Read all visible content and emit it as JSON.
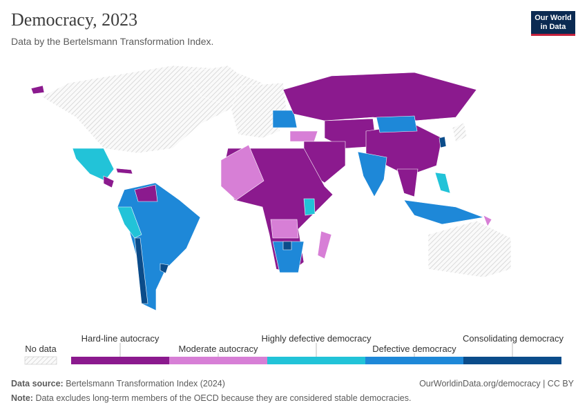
{
  "header": {
    "title": "Democracy, 2023",
    "subtitle": "Data by the Bertelsmann Transformation Index.",
    "logo": [
      "Our World",
      "in Data"
    ]
  },
  "legend": {
    "no_data": "No data",
    "items": [
      {
        "label": "Hard-line autocracy",
        "color": "#8b1a8e"
      },
      {
        "label": "Moderate autocracy",
        "color": "#d77fd6"
      },
      {
        "label": "Highly defective democracy",
        "color": "#22c3d8"
      },
      {
        "label": "Defective democracy",
        "color": "#1e88d8"
      },
      {
        "label": "Consolidating democracy",
        "color": "#0b4c8a"
      }
    ]
  },
  "footer": {
    "source_label": "Data source:",
    "source": "Bertelsmann Transformation Index (2024)",
    "url": "OurWorldinData.org/democracy | CC BY",
    "note_label": "Note:",
    "note": "Data excludes long-term members of the OECD because they are considered stable democracies."
  }
}
